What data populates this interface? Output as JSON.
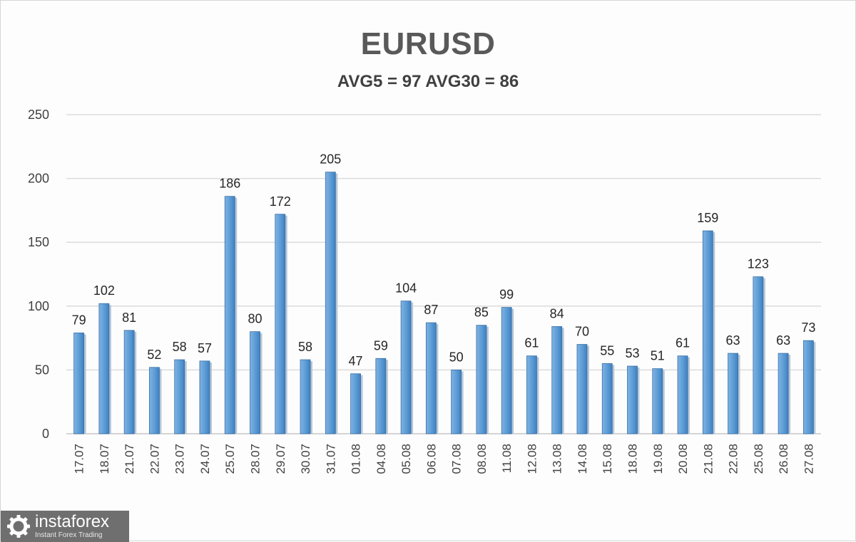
{
  "chart_data": {
    "type": "bar",
    "title": "EURUSD",
    "subtitle": "AVG5 = 97 AVG30 = 86",
    "categories": [
      "17.07",
      "18.07",
      "21.07",
      "22.07",
      "23.07",
      "24.07",
      "25.07",
      "28.07",
      "29.07",
      "30.07",
      "31.07",
      "01.08",
      "04.08",
      "05.08",
      "06.08",
      "07.08",
      "08.08",
      "11.08",
      "12.08",
      "13.08",
      "14.08",
      "15.08",
      "18.08",
      "19.08",
      "20.08",
      "21.08",
      "22.08",
      "25.08",
      "26.08",
      "27.08"
    ],
    "values": [
      79,
      102,
      81,
      52,
      58,
      57,
      186,
      80,
      172,
      58,
      205,
      47,
      59,
      104,
      87,
      50,
      85,
      99,
      61,
      84,
      70,
      55,
      53,
      51,
      61,
      159,
      63,
      123,
      63,
      73
    ],
    "ylim": [
      0,
      250
    ],
    "yticks": [
      0,
      50,
      100,
      150,
      200,
      250
    ],
    "grid": true,
    "legend": "none",
    "bar_color": "#5b9bd5"
  },
  "logo": {
    "brand": "instaforex",
    "tagline": "Instant Forex Trading",
    "icon": "gear-logo-icon"
  }
}
